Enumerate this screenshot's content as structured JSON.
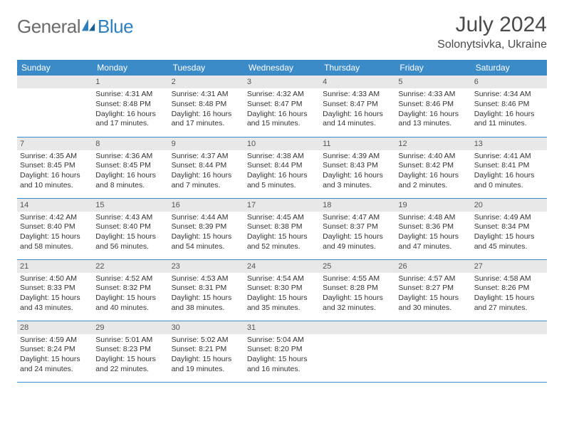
{
  "logo": {
    "word1": "General",
    "word2": "Blue"
  },
  "title": "July 2024",
  "location": "Solonytsivka, Ukraine",
  "colors": {
    "header_bg": "#3b8bc9",
    "header_text": "#ffffff",
    "daynum_bg": "#e8e8e8",
    "border": "#3b8bc9",
    "logo_gray": "#6b6b6b",
    "logo_blue": "#2f7fbf"
  },
  "dayHeaders": [
    "Sunday",
    "Monday",
    "Tuesday",
    "Wednesday",
    "Thursday",
    "Friday",
    "Saturday"
  ],
  "weeks": [
    [
      null,
      {
        "n": "1",
        "sr": "4:31 AM",
        "ss": "8:48 PM",
        "dl": "16 hours and 17 minutes."
      },
      {
        "n": "2",
        "sr": "4:31 AM",
        "ss": "8:48 PM",
        "dl": "16 hours and 17 minutes."
      },
      {
        "n": "3",
        "sr": "4:32 AM",
        "ss": "8:47 PM",
        "dl": "16 hours and 15 minutes."
      },
      {
        "n": "4",
        "sr": "4:33 AM",
        "ss": "8:47 PM",
        "dl": "16 hours and 14 minutes."
      },
      {
        "n": "5",
        "sr": "4:33 AM",
        "ss": "8:46 PM",
        "dl": "16 hours and 13 minutes."
      },
      {
        "n": "6",
        "sr": "4:34 AM",
        "ss": "8:46 PM",
        "dl": "16 hours and 11 minutes."
      }
    ],
    [
      {
        "n": "7",
        "sr": "4:35 AM",
        "ss": "8:45 PM",
        "dl": "16 hours and 10 minutes."
      },
      {
        "n": "8",
        "sr": "4:36 AM",
        "ss": "8:45 PM",
        "dl": "16 hours and 8 minutes."
      },
      {
        "n": "9",
        "sr": "4:37 AM",
        "ss": "8:44 PM",
        "dl": "16 hours and 7 minutes."
      },
      {
        "n": "10",
        "sr": "4:38 AM",
        "ss": "8:44 PM",
        "dl": "16 hours and 5 minutes."
      },
      {
        "n": "11",
        "sr": "4:39 AM",
        "ss": "8:43 PM",
        "dl": "16 hours and 3 minutes."
      },
      {
        "n": "12",
        "sr": "4:40 AM",
        "ss": "8:42 PM",
        "dl": "16 hours and 2 minutes."
      },
      {
        "n": "13",
        "sr": "4:41 AM",
        "ss": "8:41 PM",
        "dl": "16 hours and 0 minutes."
      }
    ],
    [
      {
        "n": "14",
        "sr": "4:42 AM",
        "ss": "8:40 PM",
        "dl": "15 hours and 58 minutes."
      },
      {
        "n": "15",
        "sr": "4:43 AM",
        "ss": "8:40 PM",
        "dl": "15 hours and 56 minutes."
      },
      {
        "n": "16",
        "sr": "4:44 AM",
        "ss": "8:39 PM",
        "dl": "15 hours and 54 minutes."
      },
      {
        "n": "17",
        "sr": "4:45 AM",
        "ss": "8:38 PM",
        "dl": "15 hours and 52 minutes."
      },
      {
        "n": "18",
        "sr": "4:47 AM",
        "ss": "8:37 PM",
        "dl": "15 hours and 49 minutes."
      },
      {
        "n": "19",
        "sr": "4:48 AM",
        "ss": "8:36 PM",
        "dl": "15 hours and 47 minutes."
      },
      {
        "n": "20",
        "sr": "4:49 AM",
        "ss": "8:34 PM",
        "dl": "15 hours and 45 minutes."
      }
    ],
    [
      {
        "n": "21",
        "sr": "4:50 AM",
        "ss": "8:33 PM",
        "dl": "15 hours and 43 minutes."
      },
      {
        "n": "22",
        "sr": "4:52 AM",
        "ss": "8:32 PM",
        "dl": "15 hours and 40 minutes."
      },
      {
        "n": "23",
        "sr": "4:53 AM",
        "ss": "8:31 PM",
        "dl": "15 hours and 38 minutes."
      },
      {
        "n": "24",
        "sr": "4:54 AM",
        "ss": "8:30 PM",
        "dl": "15 hours and 35 minutes."
      },
      {
        "n": "25",
        "sr": "4:55 AM",
        "ss": "8:28 PM",
        "dl": "15 hours and 32 minutes."
      },
      {
        "n": "26",
        "sr": "4:57 AM",
        "ss": "8:27 PM",
        "dl": "15 hours and 30 minutes."
      },
      {
        "n": "27",
        "sr": "4:58 AM",
        "ss": "8:26 PM",
        "dl": "15 hours and 27 minutes."
      }
    ],
    [
      {
        "n": "28",
        "sr": "4:59 AM",
        "ss": "8:24 PM",
        "dl": "15 hours and 24 minutes."
      },
      {
        "n": "29",
        "sr": "5:01 AM",
        "ss": "8:23 PM",
        "dl": "15 hours and 22 minutes."
      },
      {
        "n": "30",
        "sr": "5:02 AM",
        "ss": "8:21 PM",
        "dl": "15 hours and 19 minutes."
      },
      {
        "n": "31",
        "sr": "5:04 AM",
        "ss": "8:20 PM",
        "dl": "15 hours and 16 minutes."
      },
      null,
      null,
      null
    ]
  ],
  "labels": {
    "sunrise": "Sunrise: ",
    "sunset": "Sunset: ",
    "daylight": "Daylight: "
  }
}
